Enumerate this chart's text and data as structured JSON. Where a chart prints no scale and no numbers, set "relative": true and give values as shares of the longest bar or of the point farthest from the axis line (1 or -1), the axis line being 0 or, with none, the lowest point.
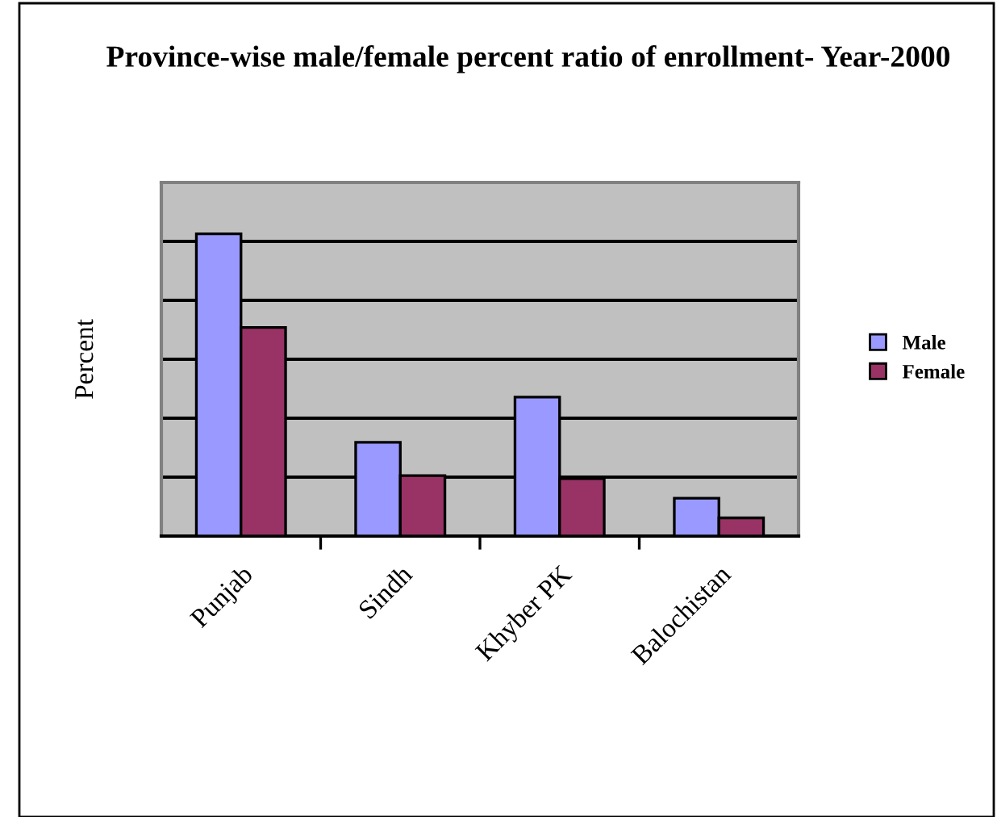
{
  "chart_data": {
    "type": "bar",
    "title": "Province-wise male/female percent ratio of enrollment- Year-2000",
    "ylabel": "Percent",
    "categories": [
      "Punjab",
      "Sindh",
      "Khyber PK",
      "Balochistan"
    ],
    "series": [
      {
        "name": "Male",
        "color": "#9999ff",
        "values": [
          1,
          0.31,
          0.46,
          0.125
        ]
      },
      {
        "name": "Female",
        "color": "#993366",
        "values": [
          0.69,
          0.2,
          0.19,
          0.06
        ]
      }
    ],
    "relative": true,
    "grid": "y",
    "legend": "right"
  }
}
